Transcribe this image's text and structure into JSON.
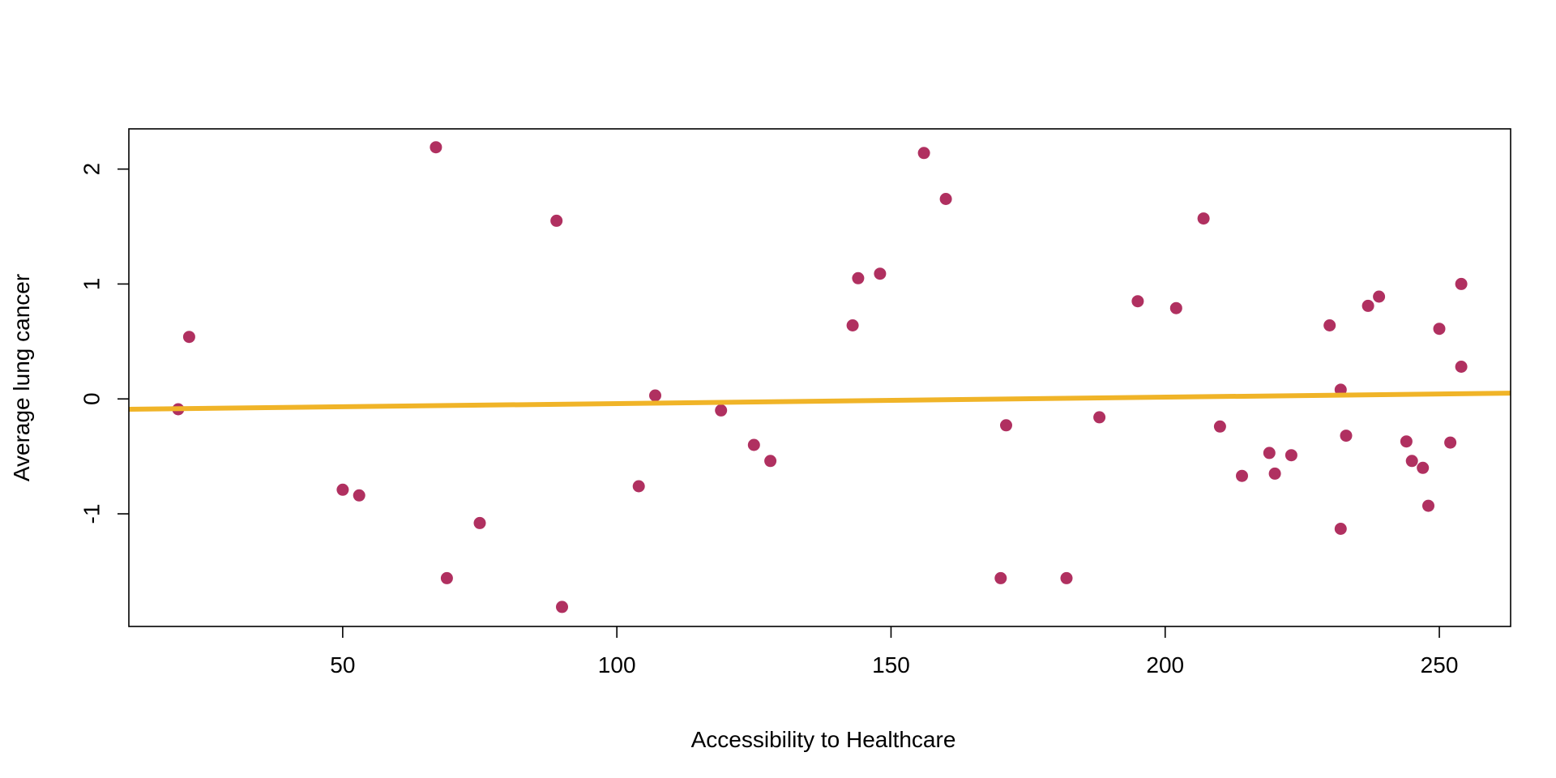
{
  "chart_data": {
    "type": "scatter",
    "title": "",
    "xlabel": "Accessibility to Healthcare",
    "ylabel": "Average lung cancer",
    "xlim": [
      11,
      263
    ],
    "ylim": [
      -1.98,
      2.35
    ],
    "x_ticks": [
      50,
      100,
      150,
      200,
      250
    ],
    "y_ticks": [
      -1,
      0,
      1,
      2
    ],
    "grid": false,
    "legend": "none",
    "point_color": "#B03060",
    "line_color": "#F0B428",
    "regression_line": {
      "x": [
        11,
        263
      ],
      "y": [
        -0.09,
        0.05
      ]
    },
    "series": [
      {
        "points": [
          [
            20,
            -0.09
          ],
          [
            22,
            0.54
          ],
          [
            50,
            -0.79
          ],
          [
            53,
            -0.84
          ],
          [
            67,
            2.19
          ],
          [
            69,
            -1.56
          ],
          [
            75,
            -1.08
          ],
          [
            89,
            1.55
          ],
          [
            90,
            -1.81
          ],
          [
            104,
            -0.76
          ],
          [
            107,
            0.03
          ],
          [
            119,
            -0.1
          ],
          [
            125,
            -0.4
          ],
          [
            128,
            -0.54
          ],
          [
            143,
            0.64
          ],
          [
            144,
            1.05
          ],
          [
            148,
            1.09
          ],
          [
            156,
            2.14
          ],
          [
            160,
            1.74
          ],
          [
            170,
            -1.56
          ],
          [
            171,
            -0.23
          ],
          [
            182,
            -1.56
          ],
          [
            188,
            -0.16
          ],
          [
            195,
            0.85
          ],
          [
            202,
            0.79
          ],
          [
            207,
            1.57
          ],
          [
            210,
            -0.24
          ],
          [
            214,
            -0.67
          ],
          [
            219,
            -0.47
          ],
          [
            220,
            -0.65
          ],
          [
            223,
            -0.49
          ],
          [
            230,
            0.64
          ],
          [
            232,
            0.08
          ],
          [
            232,
            -1.13
          ],
          [
            233,
            -0.32
          ],
          [
            237,
            0.81
          ],
          [
            239,
            0.89
          ],
          [
            244,
            -0.37
          ],
          [
            245,
            -0.54
          ],
          [
            247,
            -0.6
          ],
          [
            248,
            -0.93
          ],
          [
            250,
            0.61
          ],
          [
            252,
            -0.38
          ],
          [
            254,
            1.0
          ],
          [
            254,
            0.28
          ]
        ]
      }
    ]
  }
}
